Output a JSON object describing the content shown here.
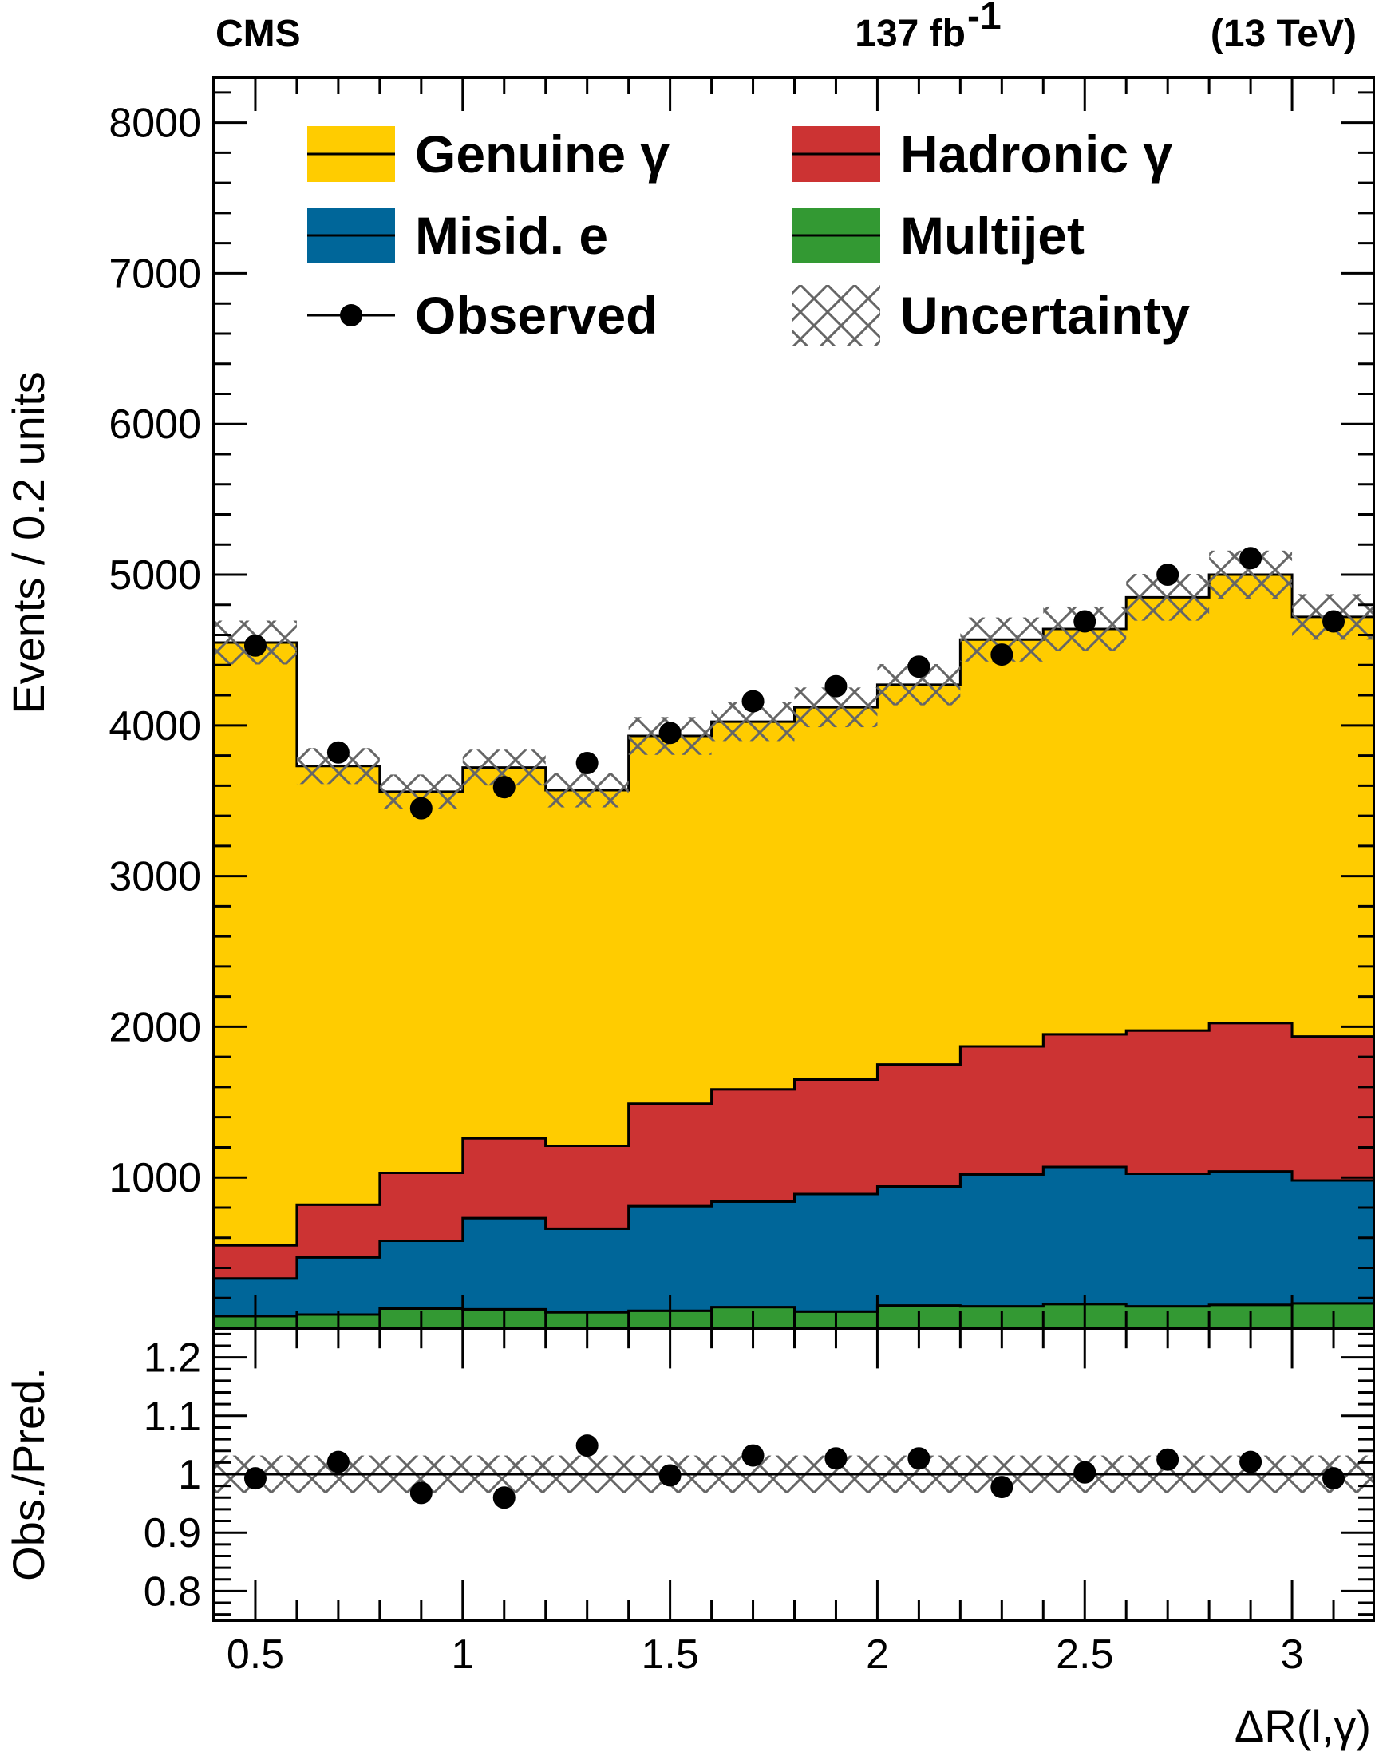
{
  "chart_data": {
    "type": "bar",
    "experiment": "CMS",
    "luminosity_label": "137 fb",
    "luminosity_exponent": "-1",
    "energy_label": "(13 TeV)",
    "xlabel": "ΔR(l,γ)",
    "ylabel": "Events / 0.2 units",
    "ratio_ylabel": "Obs./Pred.",
    "x_edges": [
      0.4,
      0.6,
      0.8,
      1.0,
      1.2,
      1.4,
      1.6,
      1.8,
      2.0,
      2.2,
      2.4,
      2.6,
      2.8,
      3.0,
      3.2
    ],
    "xlim": [
      0.4,
      3.2
    ],
    "ylim": [
      0,
      8300
    ],
    "ratio_ylim": [
      0.75,
      1.25
    ],
    "x_ticks": [
      0.5,
      1,
      1.5,
      2,
      2.5,
      3
    ],
    "x_tick_labels": [
      "0.5",
      "1",
      "1.5",
      "2",
      "2.5",
      "3"
    ],
    "y_ticks": [
      1000,
      2000,
      3000,
      4000,
      5000,
      6000,
      7000,
      8000
    ],
    "y_tick_labels": [
      "1000",
      "2000",
      "3000",
      "4000",
      "5000",
      "6000",
      "7000",
      "8000"
    ],
    "ratio_y_ticks": [
      0.8,
      0.9,
      1.0,
      1.1,
      1.2
    ],
    "ratio_y_tick_labels": [
      "0.8",
      "0.9",
      "1",
      "1.1",
      "1.2"
    ],
    "series": [
      {
        "name": "Multijet",
        "color": "#339933",
        "values": [
          80,
          90,
          130,
          125,
          105,
          115,
          140,
          110,
          150,
          145,
          160,
          145,
          155,
          165
        ]
      },
      {
        "name": "Misid. e",
        "color": "#006699",
        "values": [
          250,
          380,
          450,
          605,
          555,
          695,
          700,
          780,
          790,
          875,
          910,
          880,
          885,
          815
        ]
      },
      {
        "name": "Hadronic γ",
        "color": "#cc3333",
        "values": [
          220,
          350,
          450,
          530,
          550,
          680,
          745,
          760,
          810,
          850,
          880,
          950,
          985,
          955
        ]
      },
      {
        "name": "Genuine γ",
        "color": "#ffcc00",
        "values": [
          4000,
          2910,
          2530,
          2460,
          2360,
          2440,
          2440,
          2470,
          2520,
          2700,
          2690,
          2875,
          2975,
          2785
        ]
      }
    ],
    "observed": {
      "name": "Observed",
      "values": [
        4530,
        3820,
        3450,
        3590,
        3750,
        3950,
        4160,
        4260,
        4390,
        4470,
        4690,
        5000,
        5110,
        4690
      ]
    },
    "uncertainty": {
      "name": "Uncertainty",
      "fraction": [
        0.032,
        0.032,
        0.032,
        0.032,
        0.032,
        0.032,
        0.032,
        0.032,
        0.032,
        0.032,
        0.032,
        0.032,
        0.032,
        0.032
      ]
    },
    "ratio": {
      "values": [
        0.993,
        1.021,
        0.968,
        0.96,
        1.049,
        0.998,
        1.032,
        1.027,
        1.027,
        0.978,
        1.003,
        1.025,
        1.021,
        0.993
      ]
    },
    "legend": [
      {
        "label": "Genuine γ",
        "kind": "fill",
        "color": "#ffcc00"
      },
      {
        "label": "Hadronic γ",
        "kind": "fill",
        "color": "#cc3333"
      },
      {
        "label": "Misid. e",
        "kind": "fill",
        "color": "#006699"
      },
      {
        "label": "Multijet",
        "kind": "fill",
        "color": "#339933"
      },
      {
        "label": "Observed",
        "kind": "marker",
        "color": "#000000"
      },
      {
        "label": "Uncertainty",
        "kind": "hatch",
        "color": "#666666"
      }
    ]
  }
}
